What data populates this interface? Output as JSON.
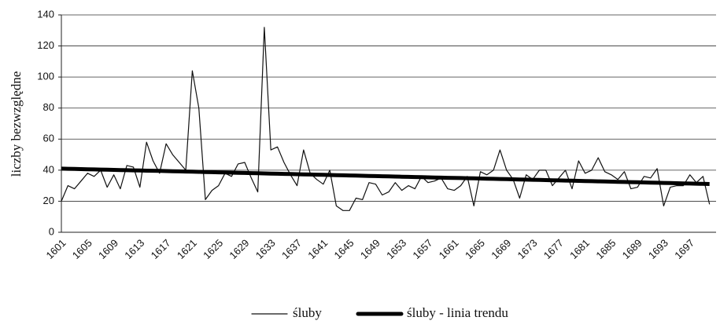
{
  "chart_data": {
    "type": "line",
    "y_label": "liczby bezwzględne",
    "categories": [
      "1601",
      null,
      null,
      null,
      "1605",
      null,
      null,
      null,
      "1609",
      null,
      null,
      null,
      "1613",
      null,
      null,
      null,
      "1617",
      null,
      null,
      null,
      "1621",
      null,
      null,
      null,
      "1625",
      null,
      null,
      null,
      "1629",
      null,
      null,
      null,
      "1633",
      null,
      null,
      null,
      "1637",
      null,
      null,
      null,
      "1641",
      null,
      null,
      null,
      "1645",
      null,
      null,
      null,
      "1649",
      null,
      null,
      null,
      "1653",
      null,
      null,
      null,
      "1657",
      null,
      null,
      null,
      "1661",
      null,
      null,
      null,
      "1665",
      null,
      null,
      null,
      "1669",
      null,
      null,
      null,
      "1673",
      null,
      null,
      null,
      "1677",
      null,
      null,
      null,
      "1681",
      null,
      null,
      null,
      "1685",
      null,
      null,
      null,
      "1689",
      null,
      null,
      null,
      "1693",
      null,
      null,
      null,
      "1697",
      null,
      null,
      null
    ],
    "series": [
      {
        "name": "śluby",
        "color": "#111111",
        "width": 1.2,
        "values": [
          20,
          30,
          28,
          33,
          38,
          36,
          40,
          29,
          37,
          28,
          43,
          42,
          29,
          58,
          46,
          38,
          57,
          50,
          45,
          40,
          104,
          80,
          21,
          27,
          30,
          38,
          36,
          44,
          45,
          35,
          26,
          132,
          53,
          55,
          45,
          37,
          30,
          53,
          38,
          34,
          31,
          40,
          17,
          14,
          14,
          22,
          21,
          32,
          31,
          24,
          26,
          32,
          27,
          30,
          28,
          36,
          32,
          33,
          35,
          28,
          27,
          30,
          36,
          17,
          39,
          37,
          40,
          53,
          40,
          34,
          22,
          37,
          34,
          40,
          40,
          30,
          35,
          40,
          28,
          46,
          38,
          40,
          48,
          39,
          37,
          34,
          39,
          28,
          29,
          36,
          35,
          41,
          17,
          29,
          30,
          30,
          37,
          32,
          36,
          18
        ]
      },
      {
        "name": "śluby - linia trendu",
        "color": "#000000",
        "width": 5,
        "values": [
          41.0,
          40.9,
          40.8,
          40.7,
          40.6,
          40.5,
          40.4,
          40.3,
          40.2,
          40.1,
          40.0,
          39.9,
          39.8,
          39.7,
          39.6,
          39.5,
          39.4,
          39.3,
          39.2,
          39.1,
          39.0,
          38.9,
          38.8,
          38.7,
          38.6,
          38.5,
          38.4,
          38.3,
          38.2,
          38.1,
          38.0,
          37.9,
          37.8,
          37.7,
          37.6,
          37.5,
          37.4,
          37.3,
          37.2,
          37.1,
          37.0,
          36.9,
          36.8,
          36.7,
          36.6,
          36.5,
          36.4,
          36.3,
          36.2,
          36.1,
          36.0,
          35.9,
          35.8,
          35.7,
          35.6,
          35.5,
          35.4,
          35.3,
          35.2,
          35.1,
          35.0,
          34.9,
          34.8,
          34.7,
          34.6,
          34.5,
          34.4,
          34.3,
          34.2,
          34.1,
          34.0,
          33.9,
          33.8,
          33.7,
          33.6,
          33.5,
          33.4,
          33.3,
          33.2,
          33.1,
          33.0,
          32.9,
          32.8,
          32.7,
          32.6,
          32.5,
          32.4,
          32.3,
          32.2,
          32.1,
          32.0,
          31.9,
          31.8,
          31.7,
          31.6,
          31.5,
          31.4,
          31.3,
          31.2,
          31.1
        ]
      }
    ],
    "ylim": [
      0,
      140
    ],
    "yticks": [
      0,
      20,
      40,
      60,
      80,
      100,
      120,
      140
    ],
    "grid": true
  }
}
